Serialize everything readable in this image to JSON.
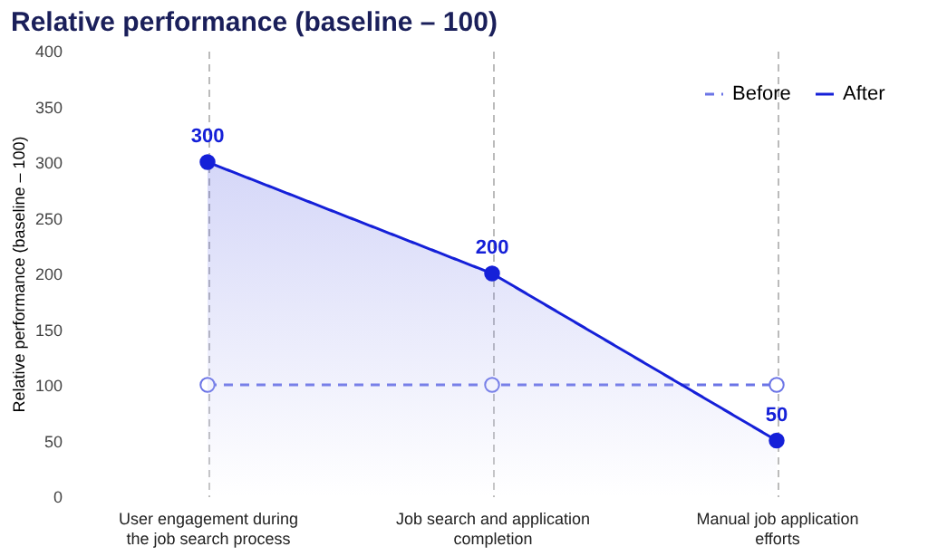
{
  "chart_data": {
    "type": "line",
    "title": "Relative performance (baseline – 100)",
    "ylabel": "Relative performance (baseline – 100)",
    "categories": [
      "User engagement during\nthe job search process",
      "Job search and application\ncompletion",
      "Manual job application\nefforts"
    ],
    "series": [
      {
        "name": "Before",
        "color": "#6b74e6",
        "values": [
          100,
          100,
          100
        ],
        "line_style": "dashed"
      },
      {
        "name": "After",
        "color": "#1520d8",
        "values": [
          300,
          200,
          50
        ],
        "type": "area",
        "line_style": "solid",
        "data_labels": true
      }
    ],
    "ylim": [
      0,
      400
    ],
    "yticks": [
      0,
      50,
      100,
      150,
      200,
      250,
      300,
      350,
      400
    ],
    "grid": "x",
    "legend": "top right",
    "marker": "circle"
  }
}
